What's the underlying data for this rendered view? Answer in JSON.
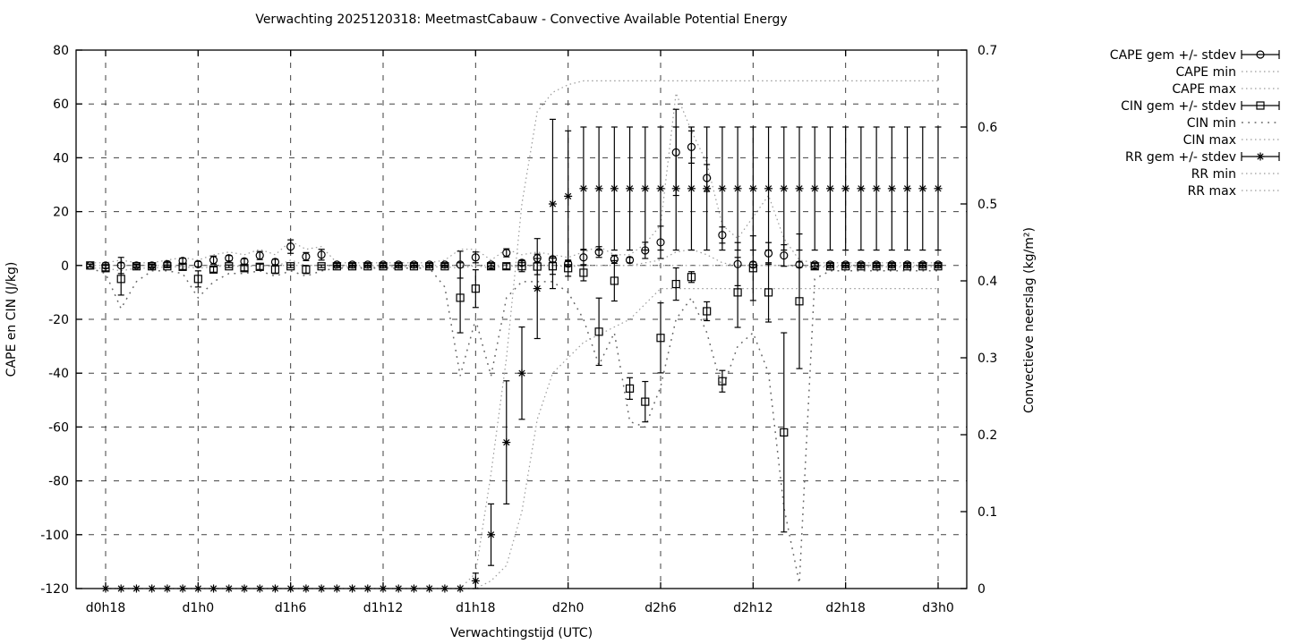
{
  "title": "Verwachting 2025120318: MeetmastCabauw - Convective Available Potential Energy",
  "colors": {
    "foreground": "#000000",
    "background": "#ffffff",
    "grid": "#404040",
    "minmax_dotted": "#9a9a9a",
    "cin_min_dotted": "#666666"
  },
  "axes": {
    "x": {
      "label": "Verwachtingstijd (UTC)",
      "tick_labels": [
        "d0h18",
        "d1h0",
        "d1h6",
        "d1h12",
        "d1h18",
        "d2h0",
        "d2h6",
        "d2h12",
        "d2h18",
        "d3h0"
      ],
      "tick_hours": [
        18,
        24,
        30,
        36,
        42,
        48,
        54,
        60,
        66,
        72
      ],
      "range_hours": [
        16.1,
        73.8
      ]
    },
    "y_left": {
      "label": "CAPE en CIN (J/kg)",
      "tick_values": [
        80,
        60,
        40,
        20,
        0,
        -20,
        -40,
        -60,
        -80,
        -100,
        -120
      ],
      "min": -120,
      "max": 80
    },
    "y_right": {
      "label": "Convectieve neerslag (kg/m²)",
      "tick_values": [
        0,
        0.1,
        0.2,
        0.3,
        0.4,
        0.5,
        0.6,
        0.7
      ],
      "tick_labels": [
        "0",
        "0.1",
        "0.2",
        "0.3",
        "0.4",
        "0.5",
        "0.6",
        "0.7"
      ],
      "min": 0,
      "max": 0.7
    },
    "grid": "dashed"
  },
  "legend": [
    {
      "label": "CAPE gem +/- stdev",
      "sample": "errorbar",
      "marker": "circle"
    },
    {
      "label": "CAPE min",
      "sample": "dotted",
      "weight": "light"
    },
    {
      "label": "CAPE max",
      "sample": "dotted",
      "weight": "light"
    },
    {
      "label": "CIN gem +/- stdev",
      "sample": "errorbar",
      "marker": "square"
    },
    {
      "label": "CIN min",
      "sample": "dotted",
      "weight": "sparse"
    },
    {
      "label": "CIN max",
      "sample": "dotted",
      "weight": "light"
    },
    {
      "label": "RR gem +/- stdev",
      "sample": "errorbar",
      "marker": "asterisk"
    },
    {
      "label": "RR min",
      "sample": "dotted",
      "weight": "light"
    },
    {
      "label": "RR max",
      "sample": "dotted",
      "weight": "light"
    }
  ],
  "chart_data": {
    "type": "errorbar-line",
    "x_start_hour": 17,
    "x_step_hours": 1,
    "x_hour_labels_note": "hours since run start; 18 = d0h18, 72 = d3h0",
    "series": [
      {
        "name": "CAPE gem",
        "axis": "left",
        "marker": "circle",
        "values": [
          0,
          0,
          0,
          0,
          0,
          0.5,
          1.7,
          0.5,
          2,
          2.7,
          1.5,
          3.7,
          1.3,
          7,
          3.3,
          4,
          0.3,
          0.3,
          0.3,
          0.3,
          0.3,
          0.3,
          0.3,
          0.3,
          0.3,
          3,
          0.3,
          4.7,
          1,
          2.7,
          2.3,
          0.7,
          3,
          5,
          2.3,
          2,
          5.6,
          8.6,
          42,
          44,
          32.5,
          11.3,
          0.5,
          0.3,
          4.5,
          3.7,
          0.3,
          0.3,
          0.3,
          0.3,
          0.3,
          0.3,
          0.3,
          0.3,
          0.3,
          0.3
        ],
        "stdev": [
          0.5,
          1,
          3,
          0.5,
          0.5,
          1,
          1,
          1,
          1.5,
          1,
          1,
          1.5,
          1,
          2.5,
          1.5,
          2,
          0.5,
          0.5,
          0.5,
          0.5,
          0.5,
          0.5,
          0.5,
          0.5,
          5,
          2,
          0.5,
          1.5,
          1,
          1.5,
          1,
          1,
          3,
          2,
          1.5,
          1,
          3,
          6,
          16,
          6,
          5,
          3,
          8,
          1,
          4,
          4,
          1,
          0.5,
          0.5,
          0.5,
          0.5,
          0.5,
          0.5,
          0.5,
          0.5,
          0.5
        ]
      },
      {
        "name": "CAPE min",
        "axis": "left",
        "style": "dotted",
        "values": [
          -1,
          -1,
          -2,
          -1,
          -1,
          -0.5,
          -0.5,
          -1,
          -0.5,
          0,
          -0.5,
          0,
          -0.5,
          2,
          0,
          0,
          -0.5,
          -0.5,
          -0.5,
          -0.5,
          -0.5,
          -0.5,
          -0.5,
          -0.5,
          -1,
          0,
          -1,
          0,
          -0.5,
          0,
          0,
          -0.5,
          0,
          0,
          0,
          0,
          1,
          2,
          5,
          6,
          4,
          1,
          0,
          0,
          0,
          0,
          -0.5,
          -0.5,
          -0.5,
          -0.5,
          -0.5,
          -0.5,
          -0.5,
          -0.5,
          -0.5,
          -0.5
        ]
      },
      {
        "name": "CAPE max",
        "axis": "left",
        "style": "dotted",
        "values": [
          1,
          1,
          2,
          1,
          1,
          2,
          3,
          2,
          4,
          5,
          4,
          6,
          4,
          9,
          6,
          7,
          1,
          1,
          1,
          1,
          1,
          1,
          1,
          2,
          6,
          6,
          2,
          6,
          4,
          5,
          4,
          3,
          5,
          7,
          4,
          4,
          8,
          15,
          64,
          50,
          38,
          15,
          10,
          18,
          26,
          10,
          2,
          1,
          1,
          1,
          1,
          1,
          1,
          1,
          1,
          1
        ]
      },
      {
        "name": "CIN gem",
        "axis": "left",
        "marker": "square",
        "values": [
          0,
          -1,
          -5,
          -0.3,
          -0.3,
          -0.3,
          -0.5,
          -5,
          -1.5,
          -0.3,
          -1,
          -0.5,
          -1.5,
          -0.3,
          -1.5,
          -0.3,
          -0.3,
          -0.3,
          -0.3,
          -0.3,
          -0.3,
          -0.3,
          -0.3,
          -0.3,
          -12,
          -8.6,
          -0.3,
          -0.3,
          -0.3,
          -0.4,
          -0.3,
          -1,
          -2.7,
          -24.6,
          -5.7,
          -45.7,
          -50.6,
          -26.9,
          -6.9,
          -4.3,
          -17,
          -43,
          -10,
          -1,
          -10,
          -62,
          -13.3,
          -0.3,
          -0.3,
          -0.3,
          -0.3,
          -0.3,
          -0.3,
          -0.3,
          -0.3,
          -0.3
        ],
        "stdev": [
          0.5,
          1,
          6,
          0.5,
          0.5,
          0.5,
          1,
          3,
          1,
          0.5,
          1,
          1,
          1.5,
          0.5,
          1.5,
          0.5,
          0.5,
          0.5,
          0.5,
          0.5,
          0.5,
          0.5,
          0.5,
          0.5,
          13,
          7,
          1,
          1,
          2,
          3,
          3,
          3,
          3,
          12.5,
          7.5,
          4,
          7.5,
          13,
          6,
          2,
          3.5,
          4,
          13,
          12,
          11,
          37,
          25,
          1,
          0.5,
          0.5,
          0.5,
          0.5,
          0.5,
          0.5,
          0.5,
          0.5
        ]
      },
      {
        "name": "CIN min",
        "axis": "left",
        "style": "dotted-sparse",
        "values": [
          -1,
          -3,
          -16,
          -6,
          -2,
          -2,
          -3,
          -12,
          -6,
          -3,
          -3,
          -2,
          -4,
          -2,
          -4,
          -2,
          -1,
          -1,
          -1,
          -1,
          -1,
          -1,
          -1,
          -8,
          -41,
          -20,
          -41,
          -12,
          -6,
          -6,
          -6,
          -10,
          -20,
          -37,
          -25,
          -58,
          -60,
          -45,
          -20,
          -12,
          -25,
          -46,
          -30,
          -25,
          -40,
          -90,
          -118,
          -5,
          -2,
          -2,
          -2,
          -2,
          -2,
          -2,
          -2,
          -2
        ]
      },
      {
        "name": "CIN max",
        "axis": "left",
        "style": "dotted",
        "values": [
          0,
          0,
          0,
          0,
          0,
          0,
          0,
          0,
          0,
          0,
          0,
          0,
          0,
          0,
          0,
          0,
          0,
          0,
          0,
          0,
          0,
          0,
          0,
          0,
          0,
          0,
          0,
          0,
          0,
          0,
          0,
          0,
          0,
          0,
          0,
          0,
          0,
          0,
          0,
          0,
          0,
          0,
          0,
          0,
          0,
          0,
          0,
          0,
          0,
          0,
          0,
          0,
          0,
          0,
          0,
          0
        ]
      },
      {
        "name": "RR gem",
        "axis": "right",
        "marker": "asterisk",
        "values": [
          null,
          0,
          0,
          0,
          0,
          0,
          0,
          0,
          0,
          0,
          0,
          0,
          0,
          0,
          0,
          0,
          0,
          0,
          0,
          0,
          0,
          0,
          0,
          0,
          0,
          0.01,
          0.07,
          0.19,
          0.28,
          0.39,
          0.5,
          0.51,
          0.52,
          0.52,
          0.52,
          0.52,
          0.52,
          0.52,
          0.52,
          0.52,
          0.52,
          0.52,
          0.52,
          0.52,
          0.52,
          0.52,
          0.52,
          0.52,
          0.52,
          0.52,
          0.52,
          0.52,
          0.52,
          0.52,
          0.52,
          0.52
        ],
        "stdev": [
          null,
          0,
          0,
          0,
          0,
          0,
          0,
          0,
          0,
          0,
          0,
          0,
          0,
          0,
          0,
          0,
          0,
          0,
          0,
          0,
          0,
          0,
          0,
          0,
          0,
          0.01,
          0.04,
          0.08,
          0.06,
          0.065,
          0.11,
          0.085,
          0.08,
          0.08,
          0.08,
          0.08,
          0.08,
          0.08,
          0.08,
          0.08,
          0.08,
          0.08,
          0.08,
          0.08,
          0.08,
          0.08,
          0.08,
          0.08,
          0.08,
          0.08,
          0.08,
          0.08,
          0.08,
          0.08,
          0.08,
          0.08
        ]
      },
      {
        "name": "RR min",
        "axis": "right",
        "style": "dotted",
        "values": [
          null,
          0,
          0,
          0,
          0,
          0,
          0,
          0,
          0,
          0,
          0,
          0,
          0,
          0,
          0,
          0,
          0,
          0,
          0,
          0,
          0,
          0,
          0,
          0,
          0,
          0,
          0.01,
          0.03,
          0.1,
          0.22,
          0.28,
          0.3,
          0.32,
          0.33,
          0.34,
          0.35,
          0.37,
          0.39,
          0.39,
          0.39,
          0.39,
          0.39,
          0.39,
          0.39,
          0.39,
          0.39,
          0.39,
          0.39,
          0.39,
          0.39,
          0.39,
          0.39,
          0.39,
          0.39,
          0.39,
          0.39
        ]
      },
      {
        "name": "RR max",
        "axis": "right",
        "style": "dotted",
        "values": [
          null,
          0,
          0,
          0,
          0,
          0,
          0,
          0,
          0,
          0,
          0,
          0,
          0,
          0,
          0,
          0,
          0,
          0,
          0,
          0,
          0,
          0,
          0,
          0,
          0,
          0.02,
          0.15,
          0.3,
          0.5,
          0.62,
          0.645,
          0.655,
          0.66,
          0.66,
          0.66,
          0.66,
          0.66,
          0.66,
          0.66,
          0.66,
          0.66,
          0.66,
          0.66,
          0.66,
          0.66,
          0.66,
          0.66,
          0.66,
          0.66,
          0.66,
          0.66,
          0.66,
          0.66,
          0.66,
          0.66,
          0.66
        ]
      }
    ]
  }
}
